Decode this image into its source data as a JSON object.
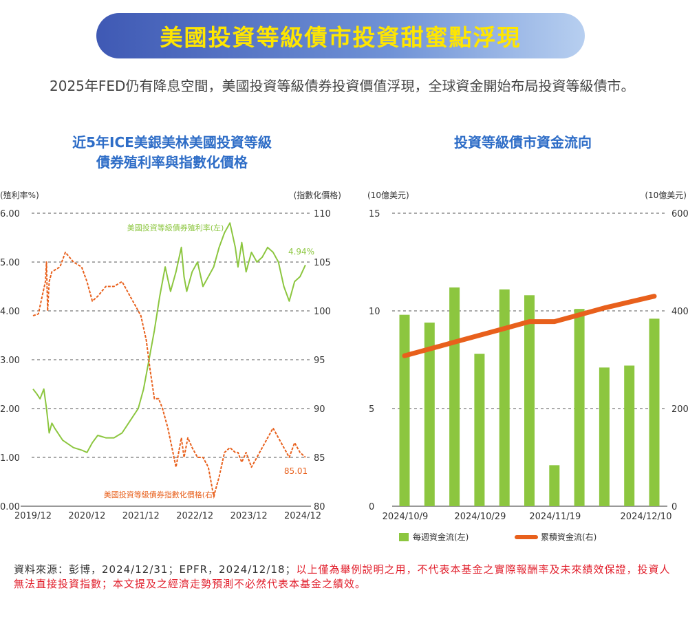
{
  "page": {
    "title": "美國投資等級債市投資甜蜜點浮現",
    "intro": "2025年FED仍有降息空間，美國投資等級債券投資價值浮現，全球資金開始布局投資等級債市。",
    "source_prefix": "資料來源：彭博，2024/12/31；EPFR，2024/12/18；",
    "source_disclaimer": "以上僅為舉例說明之用，不代表本基金之實際報酬率及未來績效保證，投資人無法直接投資指數；本文提及之經濟走勢預測不必然代表本基金之績效。"
  },
  "colors": {
    "green": "#8cc63f",
    "orange": "#e8601c",
    "blue_title": "#2e6dc7",
    "grid": "#555555"
  },
  "chart_data": [
    {
      "type": "line",
      "title_line1": "近5年ICE美銀美林美國投資等級",
      "title_line2": "債券殖利率與指數化價格",
      "left_axis_label": "(殖利率%)",
      "right_axis_label": "(指數化價格)",
      "y_left_ticks": [
        "6.00",
        "5.00",
        "4.00",
        "3.00",
        "2.00",
        "1.00",
        "0.00"
      ],
      "y_right_ticks": [
        "110",
        "105",
        "100",
        "95",
        "90",
        "85",
        "80"
      ],
      "ylim_left": [
        0,
        6
      ],
      "ylim_right": [
        80,
        110
      ],
      "x_ticks": [
        "2019/12",
        "2020/12",
        "2021/12",
        "2022/12",
        "2023/12",
        "2024/12"
      ],
      "grid": "dashed horizontal",
      "series": [
        {
          "name": "美國投資等級債券殖利率(左)",
          "axis": "left",
          "end_label": "4.94%",
          "x": [
            2019.95,
            2020.02,
            2020.08,
            2020.15,
            2020.2,
            2020.25,
            2020.3,
            2020.35,
            2020.5,
            2020.7,
            2020.85,
            2020.95,
            2021.05,
            2021.15,
            2021.3,
            2021.45,
            2021.6,
            2021.75,
            2021.9,
            2022.0,
            2022.1,
            2022.2,
            2022.3,
            2022.4,
            2022.5,
            2022.6,
            2022.7,
            2022.75,
            2022.8,
            2022.9,
            2023.0,
            2023.1,
            2023.2,
            2023.3,
            2023.4,
            2023.5,
            2023.6,
            2023.7,
            2023.75,
            2023.82,
            2023.9,
            2024.0,
            2024.1,
            2024.2,
            2024.3,
            2024.4,
            2024.5,
            2024.6,
            2024.7,
            2024.8,
            2024.9,
            2025.0
          ],
          "y": [
            2.4,
            2.3,
            2.2,
            2.4,
            2.0,
            1.5,
            1.7,
            1.6,
            1.35,
            1.2,
            1.15,
            1.1,
            1.3,
            1.45,
            1.4,
            1.4,
            1.5,
            1.75,
            2.0,
            2.4,
            3.0,
            3.6,
            4.3,
            4.9,
            4.4,
            4.8,
            5.3,
            4.7,
            4.4,
            4.8,
            5.0,
            4.5,
            4.7,
            4.9,
            5.3,
            5.6,
            5.8,
            5.3,
            4.9,
            5.4,
            4.8,
            5.2,
            5.0,
            5.1,
            5.3,
            5.2,
            5.0,
            4.5,
            4.2,
            4.6,
            4.7,
            4.94
          ]
        },
        {
          "name": "美國投資等級債券指數化價格(右)",
          "axis": "right",
          "end_label": "85.01",
          "x": [
            2019.95,
            2020.05,
            2020.12,
            2020.18,
            2020.2,
            2020.22,
            2020.25,
            2020.3,
            2020.45,
            2020.55,
            2020.7,
            2020.85,
            2020.95,
            2021.05,
            2021.15,
            2021.3,
            2021.45,
            2021.6,
            2021.75,
            2021.85,
            2021.95,
            2022.05,
            2022.12,
            2022.2,
            2022.28,
            2022.35,
            2022.45,
            2022.6,
            2022.7,
            2022.75,
            2022.82,
            2022.9,
            2023.0,
            2023.1,
            2023.2,
            2023.3,
            2023.4,
            2023.5,
            2023.6,
            2023.7,
            2023.75,
            2023.82,
            2023.9,
            2024.0,
            2024.1,
            2024.2,
            2024.3,
            2024.4,
            2024.5,
            2024.6,
            2024.7,
            2024.8,
            2024.9,
            2025.0
          ],
          "y": [
            99.5,
            99.7,
            101.5,
            103,
            105,
            100,
            103,
            104,
            104.5,
            106,
            105,
            104.5,
            103,
            101,
            101.5,
            102.5,
            102.5,
            103,
            101.5,
            100.5,
            99.5,
            97,
            94,
            91,
            91,
            90,
            88,
            84,
            87,
            85,
            87,
            86,
            85,
            85,
            84,
            81,
            83,
            85.5,
            86,
            85.5,
            85.5,
            84.5,
            85.5,
            84,
            85,
            86,
            87,
            88,
            87,
            86,
            85,
            86.5,
            85.5,
            85.01
          ]
        }
      ]
    },
    {
      "type": "bar",
      "title": "投資等級債市資金流向",
      "left_axis_label": "(10億美元)",
      "right_axis_label": "(10億美元)",
      "y_left_ticks": [
        "15",
        "10",
        "5",
        "0"
      ],
      "y_right_ticks": [
        "600",
        "400",
        "200",
        "0"
      ],
      "ylim_left": [
        0,
        15
      ],
      "ylim_right": [
        0,
        600
      ],
      "x_ticks": [
        "2024/10/9",
        "2024/10/29",
        "2024/11/19",
        "2024/12/10"
      ],
      "grid": "dashed horizontal",
      "series": [
        {
          "name": "每週資金流(左)",
          "axis": "left",
          "type": "bar",
          "values": [
            9.8,
            9.4,
            11.2,
            7.8,
            11.1,
            10.8,
            2.1,
            10.1,
            7.1,
            7.2,
            9.6
          ]
        },
        {
          "name": "累積資金流(右)",
          "axis": "right",
          "type": "line",
          "values": [
            308,
            322,
            336,
            350,
            364,
            378,
            378,
            392,
            406,
            418,
            430
          ]
        }
      ]
    }
  ]
}
